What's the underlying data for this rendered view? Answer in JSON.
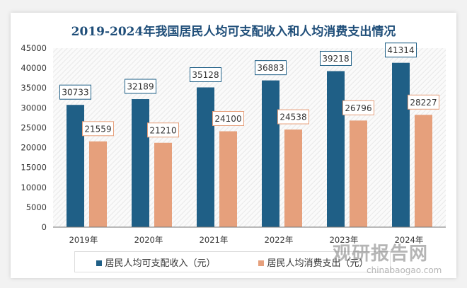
{
  "chart_data": {
    "type": "bar",
    "title": "2019-2024年我国居民人均可支配收入和人均消费支出情况",
    "categories": [
      "2019年",
      "2020年",
      "2021年",
      "2022年",
      "2023年",
      "2024年"
    ],
    "series": [
      {
        "name": "居民人均可支配收入（元）",
        "color": "#1f5f86",
        "values": [
          30733,
          32189,
          35128,
          36883,
          39218,
          41314
        ]
      },
      {
        "name": "居民人均消费支出（元）",
        "color": "#e6a07c",
        "values": [
          21559,
          21210,
          24100,
          24538,
          26796,
          28227
        ]
      }
    ],
    "ylim": [
      0,
      45000
    ],
    "yticks": [
      0,
      5000,
      10000,
      15000,
      20000,
      25000,
      30000,
      35000,
      40000,
      45000
    ],
    "grid": false,
    "legend": "bottom"
  },
  "watermark": {
    "text_cn": "观研报告网",
    "text_en": "chinabaogao.com"
  }
}
